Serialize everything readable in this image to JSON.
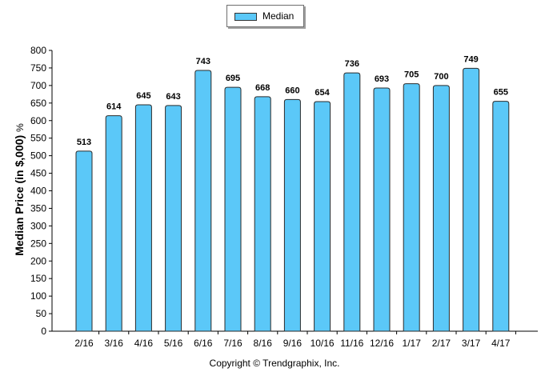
{
  "chart_data": {
    "type": "bar",
    "categories": [
      "2/16",
      "3/16",
      "4/16",
      "5/16",
      "6/16",
      "7/16",
      "8/16",
      "9/16",
      "10/16",
      "11/16",
      "12/16",
      "1/17",
      "2/17",
      "3/17",
      "4/17"
    ],
    "series": [
      {
        "name": "Median",
        "values": [
          513,
          614,
          645,
          643,
          743,
          695,
          668,
          660,
          654,
          736,
          693,
          705,
          700,
          749,
          655
        ]
      }
    ],
    "title": "",
    "xlabel": "",
    "ylabel": "Median Price (in $,000)",
    "ylabel_unit": "%",
    "ylim": [
      0,
      800
    ],
    "ytick_step": 50,
    "grid": false,
    "legend_position": "top-center",
    "colors": {
      "bar": "#5bc8f8",
      "bar_stroke": "#2b2b2b"
    }
  },
  "footer": {
    "copyright": "Copyright © Trendgraphix, Inc."
  }
}
